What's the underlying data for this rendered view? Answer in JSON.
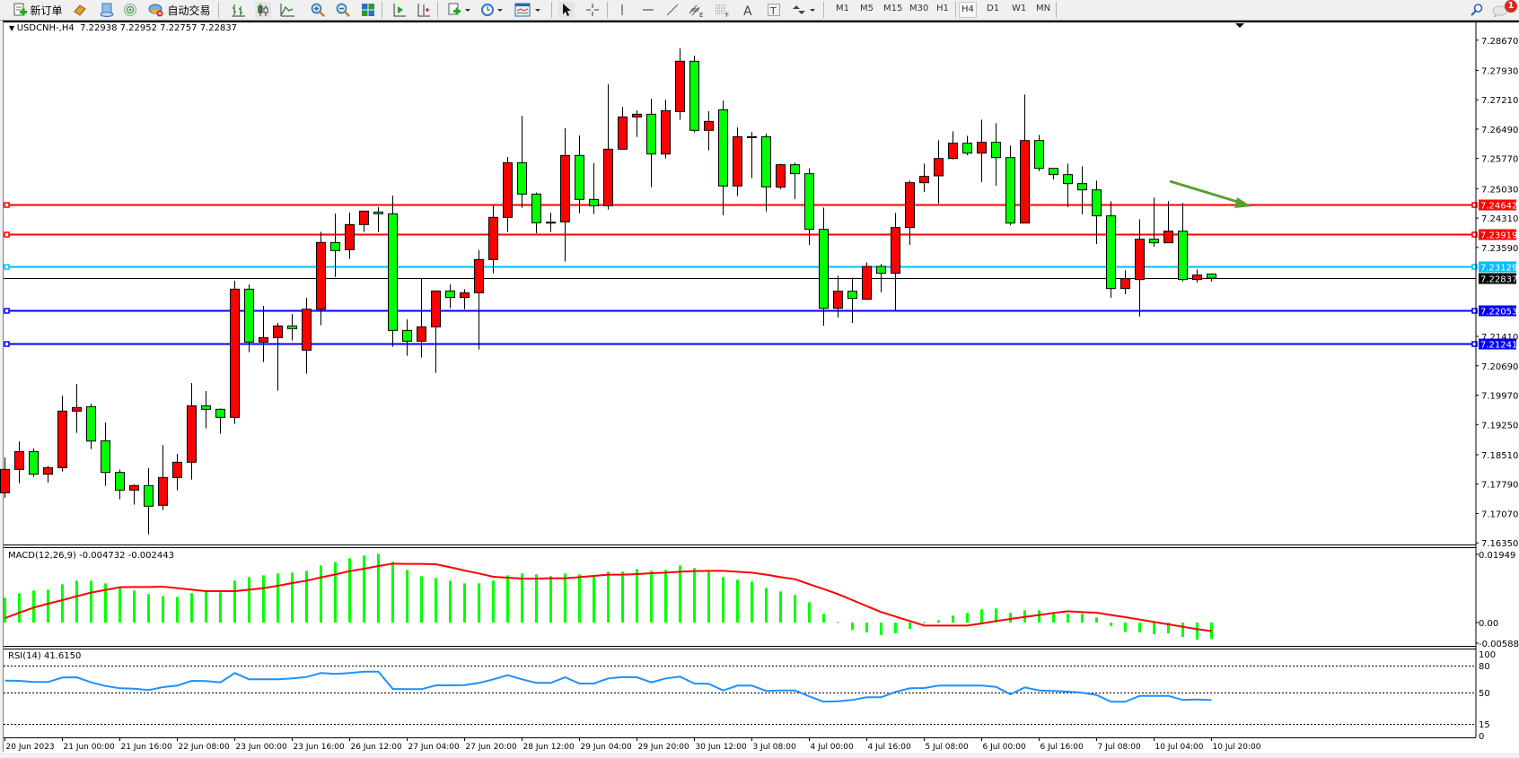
{
  "toolbar": {
    "new_order_label": "新订单",
    "auto_trading_label": "自动交易",
    "timeframes": [
      "M1",
      "M5",
      "M15",
      "M30",
      "H1",
      "H4",
      "D1",
      "W1",
      "MN"
    ],
    "active_timeframe": "H4",
    "notification_count": "1",
    "icons": [
      "new-order-icon",
      "market-watch-icon",
      "navigator-icon",
      "signals-icon",
      "auto-trading-icon",
      "bar-chart-icon",
      "candlestick-icon",
      "line-chart-icon",
      "zoom-in-icon",
      "zoom-out-icon",
      "tile-windows-icon",
      "chart-shift-icon",
      "autoscroll-icon",
      "new-chart-icon",
      "periods-icon",
      "indicators-icon",
      "cursor-icon",
      "crosshair-icon",
      "vertical-line-icon",
      "horizontal-line-icon",
      "trendline-icon",
      "equidistant-channel-icon",
      "fibonacci-icon",
      "text-icon",
      "text-label-icon",
      "arrows-icon",
      "search-icon",
      "chat-icon"
    ]
  },
  "chart": {
    "symbol": "USDCNH-,H4",
    "ohlc_header": "7.22938 7.22952 7.22757 7.22837",
    "macd_label": "MACD(12,26,9) -0.004732 -0.002443",
    "rsi_label": "RSI(14) 41.6150",
    "colors": {
      "bull": "#ff0000",
      "bear": "#00ff00",
      "macd_hist": "#00ff00",
      "macd_signal": "#ff0000",
      "rsi": "#1e90ff",
      "arrow": "#5a9e32"
    }
  },
  "chart_data": [
    {
      "type": "candlestick",
      "timeframe": "H4",
      "x_tick_labels": [
        "20 Jun 2023",
        "21 Jun 00:00",
        "21 Jun 16:00",
        "22 Jun 08:00",
        "23 Jun 00:00",
        "23 Jun 16:00",
        "26 Jun 12:00",
        "27 Jun 04:00",
        "27 Jun 20:00",
        "28 Jun 12:00",
        "29 Jun 04:00",
        "29 Jun 20:00",
        "30 Jun 12:00",
        "3 Jul 08:00",
        "4 Jul 00:00",
        "4 Jul 16:00",
        "5 Jul 08:00",
        "6 Jul 00:00",
        "6 Jul 16:00",
        "7 Jul 08:00",
        "10 Jul 04:00",
        "10 Jul 20:00"
      ],
      "y_tick_labels": [
        "7.28670",
        "7.27930",
        "7.27210",
        "7.26490",
        "7.25770",
        "7.25030",
        "7.24310",
        "7.23590",
        "7.21410",
        "7.20690",
        "7.19970",
        "7.19250",
        "7.18510",
        "7.17790",
        "7.17070",
        "7.16350"
      ],
      "ylim": [
        7.1635,
        7.2895
      ],
      "ohlc": [
        [
          7.17578,
          7.18443,
          7.17454,
          7.1815
        ],
        [
          7.1815,
          7.18839,
          7.17813,
          7.18589
        ],
        [
          7.18589,
          7.18663,
          7.17967,
          7.18033
        ],
        [
          7.18033,
          7.18238,
          7.17827,
          7.18194
        ],
        [
          7.18194,
          7.1996,
          7.18098,
          7.19579
        ],
        [
          7.19579,
          7.20245,
          7.19044,
          7.19667
        ],
        [
          7.19689,
          7.19762,
          7.18648,
          7.18846
        ],
        [
          7.18853,
          7.193,
          7.17747,
          7.18076
        ],
        [
          7.18076,
          7.1815,
          7.17417,
          7.17644
        ],
        [
          7.17644,
          7.17783,
          7.17285,
          7.17754
        ],
        [
          7.17754,
          7.18179,
          7.1656,
          7.17249
        ],
        [
          7.17271,
          7.18751,
          7.17153,
          7.17952
        ],
        [
          7.17952,
          7.18531,
          7.17637,
          7.18326
        ],
        [
          7.18326,
          7.20267,
          7.17901,
          7.19711
        ],
        [
          7.19711,
          7.2007,
          7.19154,
          7.19623
        ],
        [
          7.19623,
          7.19645,
          7.19022,
          7.19425
        ],
        [
          7.19425,
          7.22773,
          7.19264,
          7.22568
        ],
        [
          7.22568,
          7.22686,
          7.21022,
          7.21271
        ],
        [
          7.21271,
          7.22158,
          7.2078,
          7.21381
        ],
        [
          7.21381,
          7.2174,
          7.20077,
          7.21667
        ],
        [
          7.21667,
          7.2196,
          7.21308,
          7.21601
        ],
        [
          7.21073,
          7.22356,
          7.20495,
          7.22077
        ],
        [
          7.22077,
          7.23975,
          7.21682,
          7.23711
        ],
        [
          7.23711,
          7.24422,
          7.22869,
          7.23514
        ],
        [
          7.23536,
          7.24444,
          7.23308,
          7.24151
        ],
        [
          7.24151,
          7.24481,
          7.23968,
          7.24481
        ],
        [
          7.24459,
          7.24576,
          7.23968,
          7.24415
        ],
        [
          7.24415,
          7.24862,
          7.21154,
          7.21557
        ],
        [
          7.21557,
          7.21828,
          7.20934,
          7.21293
        ],
        [
          7.21293,
          7.22825,
          7.2089,
          7.21645
        ],
        [
          7.21645,
          7.22524,
          7.20517,
          7.22524
        ],
        [
          7.22524,
          7.22686,
          7.22099,
          7.22363
        ],
        [
          7.22363,
          7.22568,
          7.22077,
          7.2248
        ],
        [
          7.2248,
          7.23521,
          7.21088,
          7.23294
        ],
        [
          7.23294,
          7.2462,
          7.22957,
          7.24327
        ],
        [
          7.24327,
          7.25807,
          7.23968,
          7.25668
        ],
        [
          7.25668,
          7.26818,
          7.24561,
          7.24898
        ],
        [
          7.24898,
          7.24935,
          7.23939,
          7.24195
        ],
        [
          7.2421,
          7.24444,
          7.23968,
          7.2421
        ],
        [
          7.24217,
          7.26511,
          7.23242,
          7.25844
        ],
        [
          7.25844,
          7.26335,
          7.2443,
          7.24767
        ],
        [
          7.24767,
          7.25653,
          7.24408,
          7.24613
        ],
        [
          7.24613,
          7.27588,
          7.24517,
          7.25998
        ],
        [
          7.25998,
          7.27038,
          7.25998,
          7.26789
        ],
        [
          7.26789,
          7.2695,
          7.26298,
          7.26855
        ],
        [
          7.26855,
          7.27236,
          7.25067,
          7.2588
        ],
        [
          7.2588,
          7.27214,
          7.2577,
          7.26943
        ],
        [
          7.26921,
          7.28467,
          7.26716,
          7.28152
        ],
        [
          7.28152,
          7.28291,
          7.26408,
          7.2646
        ],
        [
          7.2646,
          7.26928,
          7.25968,
          7.26679
        ],
        [
          7.26965,
          7.27192,
          7.24378,
          7.25096
        ],
        [
          7.25096,
          7.26533,
          7.24847,
          7.26305
        ],
        [
          7.26305,
          7.26423,
          7.25287,
          7.26305
        ],
        [
          7.26305,
          7.26379,
          7.24473,
          7.25074
        ],
        [
          7.25067,
          7.25639,
          7.25016,
          7.25617
        ],
        [
          7.25617,
          7.25668,
          7.24774,
          7.25397
        ],
        [
          7.25397,
          7.25529,
          7.23653,
          7.24034
        ],
        [
          7.24034,
          7.24569,
          7.21674,
          7.22099
        ],
        [
          7.22099,
          7.22898,
          7.21872,
          7.22517
        ],
        [
          7.22517,
          7.22854,
          7.2174,
          7.22341
        ],
        [
          7.22319,
          7.23228,
          7.22319,
          7.23125
        ],
        [
          7.23125,
          7.23184,
          7.22488,
          7.22957
        ],
        [
          7.22957,
          7.24437,
          7.22041,
          7.24078
        ],
        [
          7.24078,
          7.25228,
          7.23653,
          7.25177
        ],
        [
          7.25177,
          7.25646,
          7.2495,
          7.25331
        ],
        [
          7.25345,
          7.26217,
          7.24664,
          7.2577
        ],
        [
          7.2577,
          7.26437,
          7.25748,
          7.26144
        ],
        [
          7.26144,
          7.26327,
          7.25851,
          7.25902
        ],
        [
          7.25902,
          7.26723,
          7.25192,
          7.26166
        ],
        [
          7.26166,
          7.26635,
          7.25104,
          7.25792
        ],
        [
          7.25792,
          7.26086,
          7.24136,
          7.24188
        ],
        [
          7.24188,
          7.27339,
          7.24188,
          7.2621
        ],
        [
          7.2621,
          7.26349,
          7.25455,
          7.25529
        ],
        [
          7.25529,
          7.25529,
          7.25258,
          7.25375
        ],
        [
          7.25375,
          7.25646,
          7.24576,
          7.25155
        ],
        [
          7.25155,
          7.2558,
          7.244,
          7.25001
        ],
        [
          7.25001,
          7.25228,
          7.23675,
          7.24364
        ],
        [
          7.24364,
          7.24723,
          7.22356,
          7.22583
        ],
        [
          7.22583,
          7.2303,
          7.22444,
          7.22825
        ],
        [
          7.22803,
          7.24283,
          7.21894,
          7.23792
        ],
        [
          7.23792,
          7.24811,
          7.23609,
          7.23704
        ],
        [
          7.23704,
          7.24723,
          7.23704,
          7.2399
        ],
        [
          7.2399,
          7.24679,
          7.22759,
          7.22803
        ],
        [
          7.22803,
          7.23052,
          7.2273,
          7.22913
        ],
        [
          7.22938,
          7.22952,
          7.22757,
          7.22837
        ]
      ],
      "price_levels": [
        {
          "price": 7.24642,
          "label": "7.24642",
          "color": "#ff0000",
          "kind": "horizontal-line"
        },
        {
          "price": 7.23919,
          "label": "7.23919",
          "color": "#ff0000",
          "kind": "horizontal-line"
        },
        {
          "price": 7.23129,
          "label": "7.23129",
          "color": "#00bfff",
          "kind": "horizontal-line"
        },
        {
          "price": 7.22837,
          "label": "7.22837",
          "color": "#000000",
          "kind": "bid-line"
        },
        {
          "price": 7.22053,
          "label": "7.22053",
          "color": "#0000ff",
          "kind": "horizontal-line"
        },
        {
          "price": 7.21241,
          "label": "7.21241",
          "color": "#0000ff",
          "kind": "horizontal-line"
        }
      ],
      "annotations": [
        {
          "type": "arrow",
          "color": "#5a9e32",
          "direction": "down-right"
        }
      ]
    },
    {
      "type": "bar",
      "indicator": "MACD(12,26,9)",
      "y_tick_labels": [
        "0.01949",
        "0.00",
        "-0.005885"
      ],
      "histogram": [
        0.00709,
        0.00838,
        0.00915,
        0.0094,
        0.01094,
        0.01197,
        0.01197,
        0.0112,
        0.01017,
        0.00915,
        0.00812,
        0.00761,
        0.00735,
        0.00838,
        0.00915,
        0.00863,
        0.01197,
        0.01299,
        0.0135,
        0.01402,
        0.01427,
        0.01479,
        0.01632,
        0.01735,
        0.01838,
        0.01915,
        0.01966,
        0.01735,
        0.01504,
        0.01325,
        0.01274,
        0.01197,
        0.0112,
        0.0112,
        0.01197,
        0.0135,
        0.01402,
        0.01376,
        0.01325,
        0.01402,
        0.01376,
        0.01325,
        0.01453,
        0.01453,
        0.0153,
        0.01479,
        0.01504,
        0.01632,
        0.01556,
        0.01453,
        0.01299,
        0.01222,
        0.01171,
        0.00991,
        0.00889,
        0.00786,
        0.00581,
        0.00248,
        0.00017,
        -0.00214,
        -0.00282,
        -0.00359,
        -0.00308,
        -0.00179,
        0.0001,
        0.00068,
        0.00197,
        0.00274,
        0.00376,
        0.00402,
        0.00274,
        0.0035,
        0.0035,
        0.00299,
        0.00248,
        0.00248,
        0.00145,
        -0.00103,
        -0.00265,
        -0.00282,
        -0.00333,
        -0.00308,
        -0.0041,
        -0.00487,
        -0.004732
      ],
      "signal": [
        0.00128,
        0.00282,
        0.00427,
        0.00538,
        0.00641,
        0.00752,
        0.00855,
        0.00932,
        0.01009,
        0.01017,
        0.01017,
        0.01026,
        0.00983,
        0.0094,
        0.00897,
        0.00897,
        0.00897,
        0.0094,
        0.00983,
        0.01051,
        0.01128,
        0.01197,
        0.01291,
        0.01376,
        0.0147,
        0.01538,
        0.01615,
        0.01684,
        0.01675,
        0.01675,
        0.01667,
        0.01581,
        0.01487,
        0.01402,
        0.01308,
        0.01282,
        0.01256,
        0.01256,
        0.01265,
        0.01265,
        0.01299,
        0.01333,
        0.01368,
        0.01368,
        0.01385,
        0.0141,
        0.01427,
        0.01453,
        0.0147,
        0.01479,
        0.01479,
        0.01453,
        0.01427,
        0.01368,
        0.01299,
        0.01239,
        0.01094,
        0.00957,
        0.00812,
        0.00641,
        0.0047,
        0.00299,
        0.00171,
        0.00043,
        -0.00085,
        -0.00085,
        -0.00085,
        -0.00085,
        -0.00026,
        0.00043,
        0.00103,
        0.00162,
        0.00214,
        0.00274,
        0.00325,
        0.00299,
        0.00282,
        0.00214,
        0.00154,
        0.00085,
        0.00017,
        -0.00051,
        -0.0012,
        -0.00188,
        -0.002443
      ],
      "ylim": [
        -0.006,
        0.0215
      ]
    },
    {
      "type": "line",
      "indicator": "RSI(14)",
      "y_tick_labels": [
        "100",
        "80",
        "50",
        "15",
        "0"
      ],
      "levels": [
        80,
        50,
        15
      ],
      "ylim": [
        0,
        100
      ],
      "values": [
        63.3,
        63.0,
        61.7,
        61.7,
        66.7,
        67.0,
        61.3,
        57.3,
        54.7,
        54.3,
        52.7,
        56.0,
        57.7,
        63.0,
        62.7,
        61.3,
        71.7,
        64.7,
        64.7,
        64.7,
        65.7,
        67.3,
        71.7,
        70.7,
        71.7,
        73.3,
        73.3,
        54.0,
        53.7,
        53.7,
        58.0,
        58.0,
        58.3,
        60.7,
        64.7,
        69.3,
        64.7,
        60.7,
        60.7,
        67.0,
        60.0,
        60.0,
        65.7,
        67.3,
        67.0,
        61.3,
        65.7,
        67.7,
        60.0,
        59.7,
        52.3,
        57.7,
        57.7,
        51.7,
        52.3,
        52.3,
        45.7,
        39.7,
        40.3,
        41.7,
        44.7,
        44.7,
        50.7,
        54.7,
        55.0,
        57.7,
        57.7,
        57.7,
        57.7,
        56.3,
        48.0,
        55.7,
        52.3,
        51.7,
        51.0,
        49.7,
        47.3,
        39.7,
        39.7,
        46.3,
        46.3,
        46.3,
        41.7,
        42.3,
        41.615
      ]
    }
  ]
}
